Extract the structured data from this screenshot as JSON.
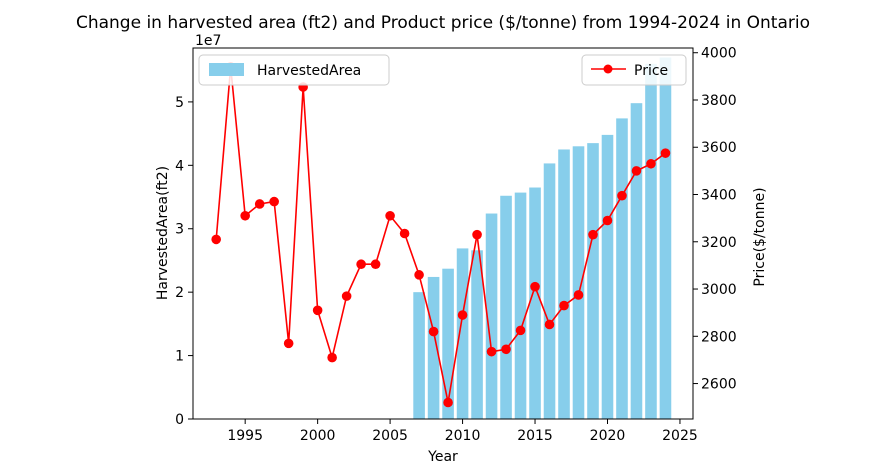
{
  "chart_data": {
    "type": "bar+line",
    "title": "Change in harvested area (ft2) and Product price ($/tonne) from 1994-2024 in Ontario",
    "xlabel": "Year",
    "ylabel_left": "HarvestedArea(ft2)",
    "ylabel_right": "Price($/tonne)",
    "left_axis_multiplier": "1e7",
    "xlim": [
      1991.4,
      2025.9
    ],
    "ylim_left": [
      0,
      58500000
    ],
    "ylim_right": [
      2450,
      4020
    ],
    "x_ticks": [
      1995,
      2000,
      2005,
      2010,
      2015,
      2020,
      2025
    ],
    "y_left_ticks": [
      0,
      10000000,
      20000000,
      30000000,
      40000000,
      50000000
    ],
    "y_left_tick_labels": [
      "0",
      "1",
      "2",
      "3",
      "4",
      "5"
    ],
    "y_right_ticks": [
      2600,
      2800,
      3000,
      3200,
      3400,
      3600,
      3800,
      4000
    ],
    "grid": false,
    "series": [
      {
        "name": "HarvestedArea",
        "type": "bar",
        "color": "#87ceeb",
        "legend_position": "upper-left",
        "x": [
          2007,
          2008,
          2009,
          2010,
          2011,
          2012,
          2013,
          2014,
          2015,
          2016,
          2017,
          2018,
          2019,
          2020,
          2021,
          2022,
          2023,
          2024
        ],
        "values": [
          20000000,
          22400000,
          23700000,
          26900000,
          26600000,
          32400000,
          35200000,
          35700000,
          36500000,
          40300000,
          42500000,
          43000000,
          43500000,
          44800000,
          47400000,
          49800000,
          56000000,
          57000000
        ]
      },
      {
        "name": "Price",
        "type": "line",
        "color": "#ff0000",
        "marker": "circle",
        "legend_position": "upper-right",
        "x": [
          1993,
          1994,
          1995,
          1996,
          1997,
          1998,
          1999,
          2000,
          2001,
          2002,
          2003,
          2004,
          2005,
          2006,
          2007,
          2008,
          2009,
          2010,
          2011,
          2012,
          2013,
          2014,
          2015,
          2016,
          2017,
          2018,
          2019,
          2020,
          2021,
          2022,
          2023,
          2024
        ],
        "values": [
          3210,
          3940,
          3310,
          3360,
          3370,
          2770,
          3855,
          2910,
          2710,
          2970,
          3105,
          3105,
          3310,
          3235,
          3060,
          2820,
          2520,
          2890,
          3230,
          2735,
          2745,
          2825,
          3010,
          2850,
          2930,
          2975,
          3230,
          3290,
          3395,
          3500,
          3530,
          3575
        ]
      }
    ]
  },
  "colors": {
    "bar": "#87ceeb",
    "line": "#ff0000",
    "axis": "#000000"
  }
}
